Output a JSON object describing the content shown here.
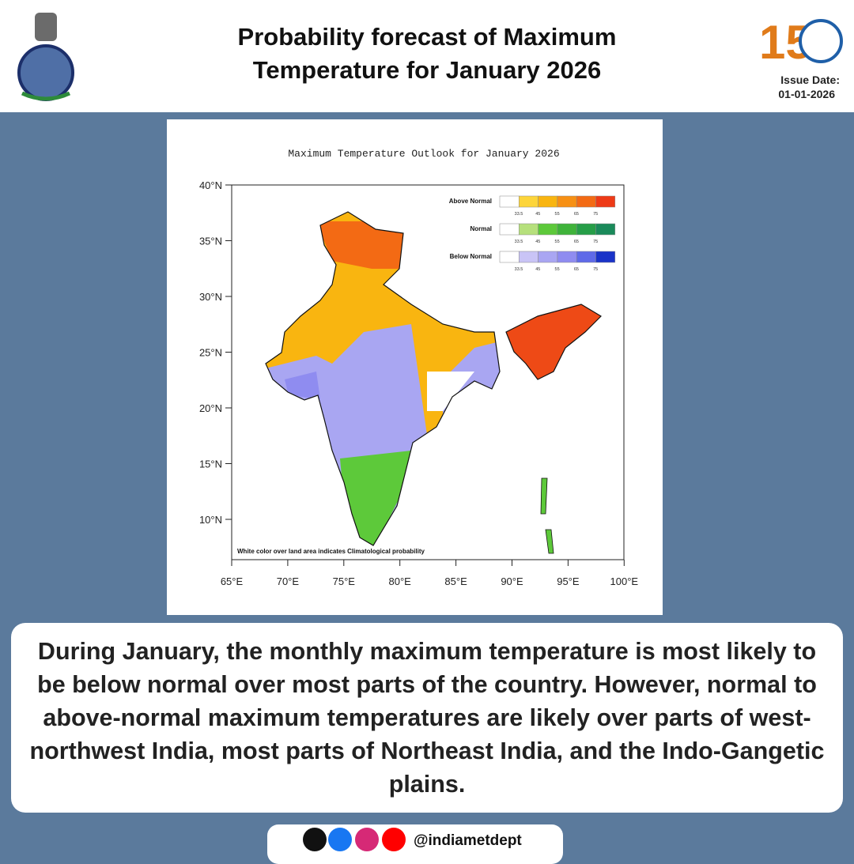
{
  "header": {
    "title": "Probability forecast of Maximum Temperature for January 2026",
    "logo_text": "150",
    "issue_label": "Issue Date:",
    "issue_date": "01-01-2026"
  },
  "map": {
    "title": "Maximum Temperature Outlook for January 2026",
    "lat_labels": [
      "40°N",
      "35°N",
      "30°N",
      "25°N",
      "20°N",
      "15°N",
      "10°N"
    ],
    "lon_labels": [
      "65°E",
      "70°E",
      "75°E",
      "80°E",
      "85°E",
      "90°E",
      "95°E",
      "100°E"
    ],
    "legend": [
      {
        "label": "Above Normal"
      },
      {
        "label": "Normal"
      },
      {
        "label": "Below Normal"
      }
    ],
    "legend_ticks": [
      33.5,
      45,
      55,
      65,
      75
    ],
    "note": "White color over land area indicates Climatological probability"
  },
  "description": "During January, the monthly maximum temperature is most likely to be below normal over most parts of the country. However, normal to above-normal maximum temperatures are likely over parts of west-northwest India, most parts of Northeast India, and the Indo-Gangetic plains.",
  "footer": {
    "handle": "@indiametdept"
  }
}
